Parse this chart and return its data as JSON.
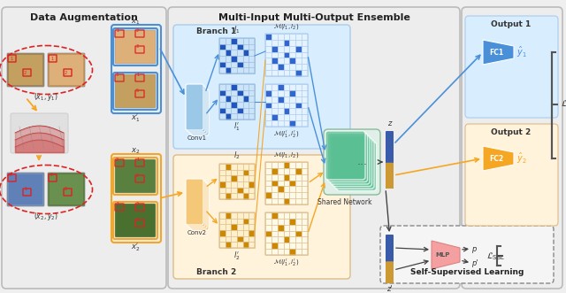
{
  "bg_color": "#EFEFEF",
  "section_da_title": "Data Augmentation",
  "section_mimo_title": "Multi-Input Multi-Output Ensemble",
  "section_ssl_title": "Self-Supervised Learning",
  "branch1_title": "Branch 1",
  "branch2_title": "Branch 2",
  "shared_net_title": "Shared Network",
  "output1_title": "Output 1",
  "output2_title": "Output 2",
  "blue": "#4A90D9",
  "orange": "#F5A623",
  "green": "#5BBF94",
  "pink": "#F4A0A0",
  "light_blue_bg": "#D8EEFF",
  "light_orange_bg": "#FFF3DC",
  "light_green_bg": "#D5EFE6",
  "red": "#DD2222",
  "dark": "#444444",
  "conv1_color": "#9CC8E8",
  "conv2_color": "#F5C878",
  "z_blue": "#3A5BAA",
  "z_orange": "#CC9933"
}
